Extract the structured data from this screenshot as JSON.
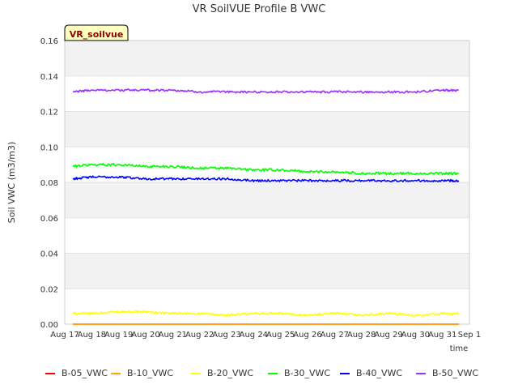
{
  "chart_data": {
    "type": "line",
    "title": "VR SoilVUE Profile B VWC",
    "site_label": "VR_soilvue",
    "xlabel": "time",
    "ylabel": "Soil VWC (m3/m3)",
    "xlim": [
      0,
      15
    ],
    "ylim": [
      0,
      0.16
    ],
    "grid": true,
    "legend_position": "bottom",
    "x_ticks": [
      {
        "x": 0,
        "label": "Aug 17"
      },
      {
        "x": 1,
        "label": "Aug 18"
      },
      {
        "x": 2,
        "label": "Aug 19"
      },
      {
        "x": 3,
        "label": "Aug 20"
      },
      {
        "x": 4,
        "label": "Aug 21"
      },
      {
        "x": 5,
        "label": "Aug 22"
      },
      {
        "x": 6,
        "label": "Aug 23"
      },
      {
        "x": 7,
        "label": "Aug 24"
      },
      {
        "x": 8,
        "label": "Aug 25"
      },
      {
        "x": 9,
        "label": "Aug 26"
      },
      {
        "x": 10,
        "label": "Aug 27"
      },
      {
        "x": 11,
        "label": "Aug 28"
      },
      {
        "x": 12,
        "label": "Aug 29"
      },
      {
        "x": 13,
        "label": "Aug 30"
      },
      {
        "x": 14,
        "label": "Aug 31"
      },
      {
        "x": 15,
        "label": "Sep 1"
      }
    ],
    "y_ticks": [
      {
        "y": 0.0,
        "label": "0.00"
      },
      {
        "y": 0.02,
        "label": "0.02"
      },
      {
        "y": 0.04,
        "label": "0.04"
      },
      {
        "y": 0.06,
        "label": "0.06"
      },
      {
        "y": 0.08,
        "label": "0.08"
      },
      {
        "y": 0.1,
        "label": "0.10"
      },
      {
        "y": 0.12,
        "label": "0.12"
      },
      {
        "y": 0.14,
        "label": "0.14"
      },
      {
        "y": 0.16,
        "label": "0.16"
      }
    ],
    "x": [
      0.3,
      1.0,
      2.0,
      3.0,
      4.0,
      5.0,
      6.0,
      7.0,
      8.0,
      9.0,
      10.0,
      11.0,
      12.0,
      13.0,
      14.0,
      14.6
    ],
    "series": [
      {
        "name": "B-05_VWC",
        "color": "#ff0000",
        "values": [
          0,
          0,
          0,
          0,
          0,
          0,
          0,
          0,
          0,
          0,
          0,
          0,
          0,
          0,
          0,
          0
        ]
      },
      {
        "name": "B-10_VWC",
        "color": "#ffa500",
        "values": [
          0,
          0,
          0,
          0,
          0,
          0,
          0,
          0,
          0,
          0,
          0,
          0,
          0,
          0,
          0,
          0
        ]
      },
      {
        "name": "B-20_VWC",
        "color": "#ffff00",
        "values": [
          0.006,
          0.006,
          0.007,
          0.007,
          0.006,
          0.006,
          0.005,
          0.006,
          0.006,
          0.005,
          0.006,
          0.005,
          0.006,
          0.005,
          0.006,
          0.006
        ]
      },
      {
        "name": "B-30_VWC",
        "color": "#00ff00",
        "values": [
          0.089,
          0.09,
          0.09,
          0.089,
          0.089,
          0.088,
          0.088,
          0.087,
          0.087,
          0.086,
          0.086,
          0.085,
          0.085,
          0.085,
          0.085,
          0.085
        ]
      },
      {
        "name": "B-40_VWC",
        "color": "#0000ff",
        "values": [
          0.082,
          0.083,
          0.083,
          0.082,
          0.082,
          0.082,
          0.082,
          0.081,
          0.081,
          0.081,
          0.081,
          0.081,
          0.081,
          0.081,
          0.081,
          0.081
        ]
      },
      {
        "name": "B-50_VWC",
        "color": "#9b30ff",
        "values": [
          0.131,
          0.132,
          0.132,
          0.132,
          0.132,
          0.131,
          0.131,
          0.131,
          0.131,
          0.131,
          0.131,
          0.131,
          0.131,
          0.131,
          0.132,
          0.132
        ]
      }
    ]
  }
}
